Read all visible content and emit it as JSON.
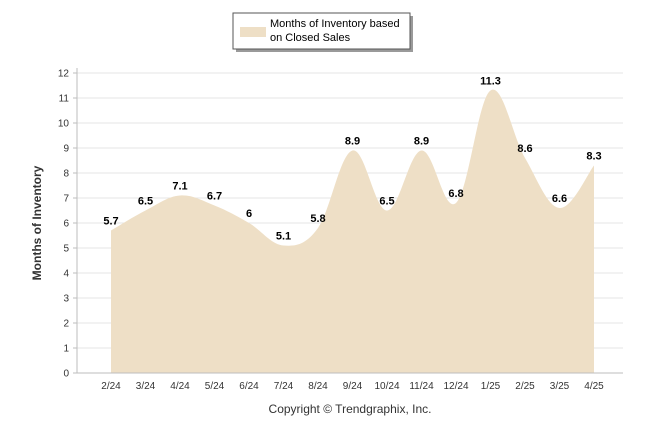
{
  "chart_data": {
    "type": "area",
    "categories": [
      "2/24",
      "3/24",
      "4/24",
      "5/24",
      "6/24",
      "7/24",
      "8/24",
      "9/24",
      "10/24",
      "11/24",
      "12/24",
      "1/25",
      "2/25",
      "3/25",
      "4/25"
    ],
    "series": [
      {
        "name": "Months of Inventory based on Closed Sales",
        "values": [
          5.7,
          6.5,
          7.1,
          6.7,
          6,
          5.1,
          5.8,
          8.9,
          6.5,
          8.9,
          6.8,
          11.3,
          8.6,
          6.6,
          8.3
        ],
        "color": "#eedfc6"
      }
    ],
    "data_labels": [
      "5.7",
      "6.5",
      "7.1",
      "6.7",
      "6",
      "5.1",
      "5.8",
      "8.9",
      "6.5",
      "8.9",
      "6.8",
      "11.3",
      "8.6",
      "6.6",
      "8.3"
    ],
    "ylabel": "Months of Inventory",
    "ylim": [
      0,
      12
    ],
    "yticks": [
      0,
      1,
      2,
      3,
      4,
      5,
      6,
      7,
      8,
      9,
      10,
      11,
      12
    ],
    "grid": true,
    "legend": {
      "placement": "top-center",
      "lines": [
        "Months of Inventory based",
        "on Closed Sales"
      ]
    }
  },
  "footer": {
    "copyright": "Copyright © Trendgraphix, Inc."
  }
}
